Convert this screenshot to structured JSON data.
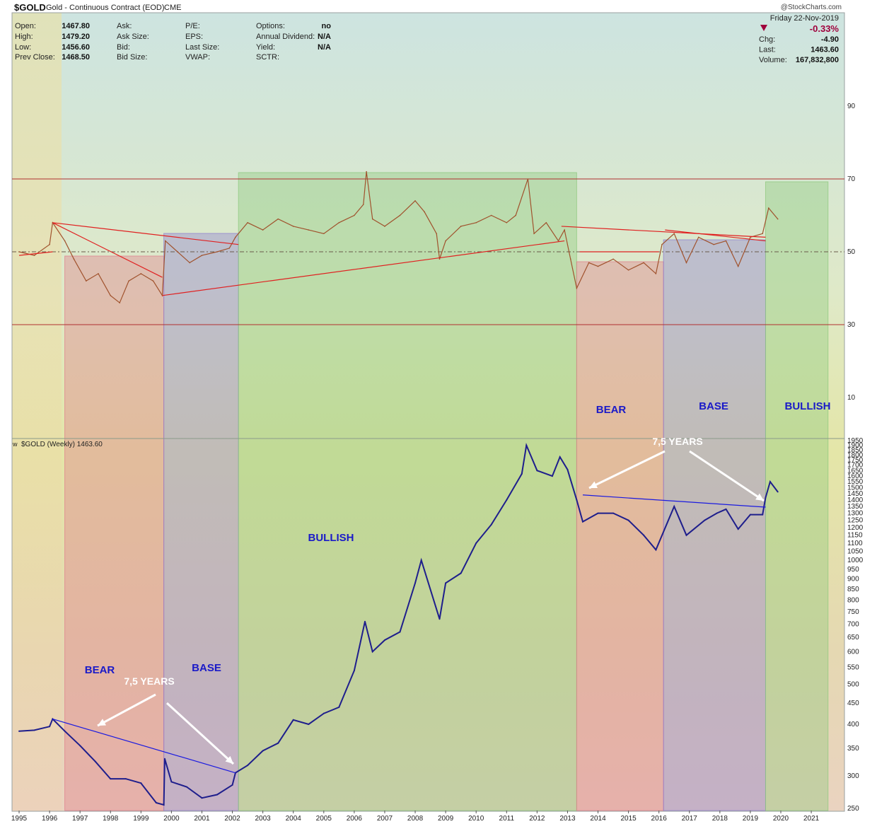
{
  "header": {
    "symbol": "$GOLD",
    "description": "Gold - Continuous Contract (EOD)",
    "exchange": "CME",
    "watermark": "@StockCharts.com",
    "date": "Friday  22-Nov-2019",
    "stats_left": [
      {
        "label": "Open:",
        "value": "1467.80"
      },
      {
        "label": "High:",
        "value": "1479.20"
      },
      {
        "label": "Low:",
        "value": "1456.60"
      },
      {
        "label": "Prev Close:",
        "value": "1468.50"
      }
    ],
    "stats_col2": [
      {
        "label": "Ask:",
        "value": ""
      },
      {
        "label": "Ask Size:",
        "value": ""
      },
      {
        "label": "Bid:",
        "value": ""
      },
      {
        "label": "Bid Size:",
        "value": ""
      }
    ],
    "stats_col3": [
      {
        "label": "P/E:",
        "value": ""
      },
      {
        "label": "EPS:",
        "value": ""
      },
      {
        "label": "Last Size:",
        "value": ""
      },
      {
        "label": "VWAP:",
        "value": ""
      }
    ],
    "stats_col4": [
      {
        "label": "Options:",
        "value": "no"
      },
      {
        "label": "Annual Dividend:",
        "value": "N/A"
      },
      {
        "label": "Yield:",
        "value": "N/A"
      },
      {
        "label": "SCTR:",
        "value": ""
      }
    ],
    "pct_change": "-0.33%",
    "stats_right": [
      {
        "label": "Chg:",
        "value": "-4.90"
      },
      {
        "label": "Last:",
        "value": "1463.60"
      },
      {
        "label": "Volume:",
        "value": "167,832,800"
      }
    ],
    "down_color": "#a0003c"
  },
  "price_panel_label": "$GOLD (Weekly) 1463.60",
  "chart_data": [
    {
      "type": "line",
      "panel": "indicator",
      "y_ticks": [
        "90",
        "70",
        "50",
        "30",
        "10"
      ],
      "ylim": [
        0,
        100
      ],
      "reference_lines": [
        70,
        50,
        30
      ],
      "line_color": "#a0522d",
      "points": [
        [
          1995.0,
          50
        ],
        [
          1995.5,
          49
        ],
        [
          1996.0,
          52
        ],
        [
          1996.1,
          58
        ],
        [
          1996.5,
          53
        ],
        [
          1996.8,
          48
        ],
        [
          1997.2,
          42
        ],
        [
          1997.6,
          44
        ],
        [
          1998.0,
          38
        ],
        [
          1998.3,
          36
        ],
        [
          1998.6,
          42
        ],
        [
          1999.0,
          44
        ],
        [
          1999.4,
          42
        ],
        [
          1999.7,
          38
        ],
        [
          1999.8,
          53
        ],
        [
          2000.2,
          50
        ],
        [
          2000.6,
          47
        ],
        [
          2001.0,
          49
        ],
        [
          2001.5,
          50
        ],
        [
          2001.9,
          51
        ],
        [
          2002.1,
          54
        ],
        [
          2002.5,
          58
        ],
        [
          2003.0,
          56
        ],
        [
          2003.5,
          59
        ],
        [
          2004.0,
          57
        ],
        [
          2004.5,
          56
        ],
        [
          2005.0,
          55
        ],
        [
          2005.5,
          58
        ],
        [
          2006.0,
          60
        ],
        [
          2006.3,
          63
        ],
        [
          2006.4,
          72
        ],
        [
          2006.6,
          59
        ],
        [
          2007.0,
          57
        ],
        [
          2007.5,
          60
        ],
        [
          2008.0,
          64
        ],
        [
          2008.3,
          61
        ],
        [
          2008.7,
          55
        ],
        [
          2008.8,
          48
        ],
        [
          2009.0,
          53
        ],
        [
          2009.5,
          57
        ],
        [
          2010.0,
          58
        ],
        [
          2010.5,
          60
        ],
        [
          2011.0,
          58
        ],
        [
          2011.3,
          60
        ],
        [
          2011.7,
          70
        ],
        [
          2011.9,
          55
        ],
        [
          2012.3,
          58
        ],
        [
          2012.7,
          53
        ],
        [
          2012.9,
          56
        ],
        [
          2013.1,
          48
        ],
        [
          2013.3,
          40
        ],
        [
          2013.7,
          47
        ],
        [
          2014.0,
          46
        ],
        [
          2014.5,
          48
        ],
        [
          2015.0,
          45
        ],
        [
          2015.5,
          47
        ],
        [
          2015.9,
          44
        ],
        [
          2016.1,
          52
        ],
        [
          2016.5,
          55
        ],
        [
          2016.9,
          47
        ],
        [
          2017.3,
          54
        ],
        [
          2017.8,
          52
        ],
        [
          2018.2,
          53
        ],
        [
          2018.6,
          46
        ],
        [
          2019.0,
          54
        ],
        [
          2019.4,
          55
        ],
        [
          2019.6,
          62
        ],
        [
          2019.9,
          59
        ]
      ]
    },
    {
      "type": "line",
      "panel": "price",
      "title": "$GOLD (Weekly) 1463.60",
      "scale": "log",
      "ylim": [
        250,
        1950
      ],
      "x_ticks": [
        "1995",
        "1996",
        "1997",
        "1998",
        "1999",
        "2000",
        "2001",
        "2002",
        "2003",
        "2004",
        "2005",
        "2006",
        "2007",
        "2008",
        "2009",
        "2010",
        "2011",
        "2012",
        "2013",
        "2014",
        "2015",
        "2016",
        "2017",
        "2018",
        "2019",
        "2020",
        "2021"
      ],
      "y_ticks": [
        "1950",
        "1900",
        "1850",
        "1800",
        "1750",
        "1700",
        "1650",
        "1600",
        "1550",
        "1500",
        "1450",
        "1400",
        "1350",
        "1300",
        "1250",
        "1200",
        "1150",
        "1100",
        "1050",
        "1000",
        "950",
        "900",
        "850",
        "800",
        "750",
        "700",
        "650",
        "600",
        "550",
        "500",
        "450",
        "400",
        "350",
        "300",
        "250"
      ],
      "line_color": "#1e1e8c",
      "points": [
        [
          1995.0,
          385
        ],
        [
          1995.5,
          387
        ],
        [
          1996.0,
          395
        ],
        [
          1996.1,
          412
        ],
        [
          1996.5,
          385
        ],
        [
          1997.0,
          355
        ],
        [
          1997.5,
          325
        ],
        [
          1998.0,
          295
        ],
        [
          1998.5,
          295
        ],
        [
          1999.0,
          288
        ],
        [
          1999.5,
          258
        ],
        [
          1999.75,
          255
        ],
        [
          1999.78,
          330
        ],
        [
          2000.0,
          290
        ],
        [
          2000.5,
          282
        ],
        [
          2001.0,
          265
        ],
        [
          2001.5,
          270
        ],
        [
          2002.0,
          285
        ],
        [
          2002.1,
          305
        ],
        [
          2002.5,
          318
        ],
        [
          2003.0,
          345
        ],
        [
          2003.5,
          360
        ],
        [
          2004.0,
          410
        ],
        [
          2004.5,
          400
        ],
        [
          2005.0,
          425
        ],
        [
          2005.5,
          440
        ],
        [
          2006.0,
          540
        ],
        [
          2006.35,
          710
        ],
        [
          2006.6,
          600
        ],
        [
          2007.0,
          640
        ],
        [
          2007.5,
          670
        ],
        [
          2008.0,
          880
        ],
        [
          2008.2,
          1000
        ],
        [
          2008.8,
          720
        ],
        [
          2009.0,
          880
        ],
        [
          2009.5,
          930
        ],
        [
          2010.0,
          1100
        ],
        [
          2010.5,
          1220
        ],
        [
          2011.0,
          1400
        ],
        [
          2011.5,
          1620
        ],
        [
          2011.65,
          1900
        ],
        [
          2012.0,
          1650
        ],
        [
          2012.5,
          1600
        ],
        [
          2012.75,
          1780
        ],
        [
          2013.0,
          1660
        ],
        [
          2013.3,
          1400
        ],
        [
          2013.5,
          1240
        ],
        [
          2014.0,
          1300
        ],
        [
          2014.5,
          1300
        ],
        [
          2015.0,
          1250
        ],
        [
          2015.5,
          1150
        ],
        [
          2015.9,
          1060
        ],
        [
          2016.5,
          1350
        ],
        [
          2016.9,
          1150
        ],
        [
          2017.5,
          1250
        ],
        [
          2017.9,
          1300
        ],
        [
          2018.2,
          1330
        ],
        [
          2018.6,
          1190
        ],
        [
          2019.0,
          1290
        ],
        [
          2019.4,
          1290
        ],
        [
          2019.5,
          1420
        ],
        [
          2019.65,
          1550
        ],
        [
          2019.9,
          1465
        ]
      ]
    }
  ],
  "zones": [
    {
      "phase": "bear",
      "label": "BEAR",
      "color": "#e07a8a"
    },
    {
      "phase": "base",
      "label": "BASE",
      "color": "#8a7ad0"
    },
    {
      "phase": "bull",
      "label": "BULLISH",
      "color": "#8ac87a"
    },
    {
      "phase": "bear",
      "label": "BEAR",
      "color": "#e07a8a"
    },
    {
      "phase": "base",
      "label": "BASE",
      "color": "#8a7ad0"
    },
    {
      "phase": "bull",
      "label": "BULLISH",
      "color": "#8ac87a"
    }
  ],
  "annotations": {
    "years_left": "7,5 YEARS",
    "years_right": "7,5 YEARS"
  }
}
